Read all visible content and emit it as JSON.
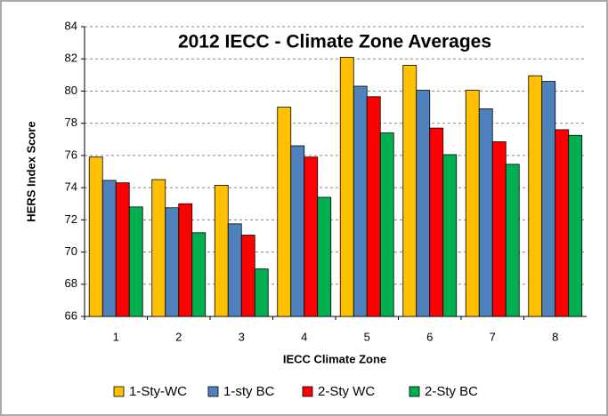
{
  "chart_data": {
    "type": "bar",
    "title": "2012 IECC - Climate Zone Averages",
    "x_label": "IECC Climate Zone",
    "y_label": "HERS Index Score",
    "categories": [
      "1",
      "2",
      "3",
      "4",
      "5",
      "6",
      "7",
      "8"
    ],
    "series": [
      {
        "name": "1-Sty-WC",
        "color": "#FFC000",
        "values": [
          75.9,
          74.5,
          74.15,
          79.0,
          82.1,
          81.6,
          80.05,
          80.95
        ]
      },
      {
        "name": "1-sty BC",
        "color": "#4F81BD",
        "values": [
          74.45,
          72.75,
          71.75,
          76.6,
          80.3,
          80.05,
          78.9,
          80.6
        ]
      },
      {
        "name": "2-Sty WC",
        "color": "#FF0000",
        "values": [
          74.3,
          73.0,
          71.05,
          75.9,
          79.65,
          77.7,
          76.85,
          77.6
        ]
      },
      {
        "name": "2-Sty BC",
        "color": "#00B050",
        "values": [
          72.8,
          71.2,
          68.95,
          73.4,
          77.4,
          76.05,
          75.45,
          77.25
        ]
      }
    ],
    "ylim": [
      66,
      84
    ],
    "yticks": [
      66,
      68,
      70,
      72,
      74,
      76,
      78,
      80,
      82,
      84
    ],
    "grid": true,
    "legend": "bottom"
  }
}
